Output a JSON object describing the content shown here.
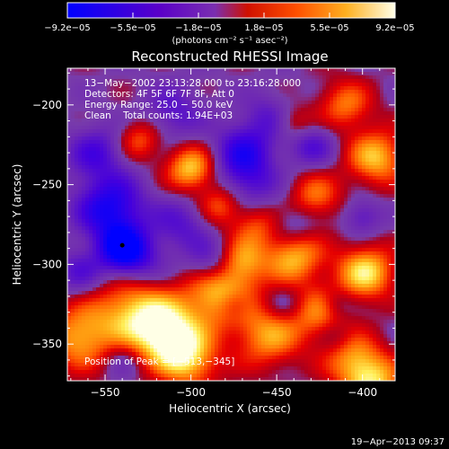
{
  "chart_data": {
    "type": "heatmap",
    "title": "Reconstructed RHESSI Image",
    "xlabel": "Heliocentric X (arcsec)",
    "ylabel": "Heliocentric Y (arcsec)",
    "xlim": [
      -572,
      -381
    ],
    "ylim": [
      -373,
      -177
    ],
    "x_ticks": [
      -550,
      -500,
      -450,
      -400
    ],
    "y_ticks": [
      -200,
      -250,
      -300,
      -350
    ],
    "x_tick_labels": [
      "−550",
      "−500",
      "−450",
      "−400"
    ],
    "y_tick_labels": [
      "−200",
      "−250",
      "−300",
      "−350"
    ],
    "colorbar": {
      "range": [
        -9.2e-05,
        9.2e-05
      ],
      "tick_labels": [
        "−9.2e−05",
        "−5.5e−05",
        "−1.8e−05",
        "1.8e−05",
        "5.5e−05",
        "9.2e−05"
      ],
      "unit_label": "(photons cm⁻² s⁻¹ asec⁻²)",
      "colors": [
        "#0000ff",
        "#5a00c8",
        "#7a2fb0",
        "#ff0000",
        "#ff8000",
        "#ffff60",
        "#ffffe8"
      ]
    },
    "annotations": {
      "time": "13−May−2002 23:13:28.000 to 23:16:28.000",
      "detectors": "Detectors: 4F 5F 6F 7F 8F, Att 0",
      "energy": "Energy Range: 25.0 − 50.0 keV",
      "clean": "Clean    Total counts: 1.94E+03",
      "peak": "Position of Peak = [−513,−345]"
    },
    "peak": {
      "x": -513,
      "y": -345
    },
    "blobs": [
      {
        "x": -565,
        "y": -346,
        "v": 0.7,
        "r": 14
      },
      {
        "x": -533,
        "y": -328,
        "v": 0.75,
        "r": 16
      },
      {
        "x": -513,
        "y": -345,
        "v": 1.0,
        "r": 14
      },
      {
        "x": -500,
        "y": -362,
        "v": 0.6,
        "r": 12
      },
      {
        "x": -483,
        "y": -318,
        "v": 0.85,
        "r": 14
      },
      {
        "x": -470,
        "y": -298,
        "v": 0.55,
        "r": 10
      },
      {
        "x": -455,
        "y": -345,
        "v": 0.65,
        "r": 14
      },
      {
        "x": -440,
        "y": -295,
        "v": 0.75,
        "r": 12
      },
      {
        "x": -425,
        "y": -330,
        "v": 0.55,
        "r": 12
      },
      {
        "x": -405,
        "y": -360,
        "v": 0.6,
        "r": 12
      },
      {
        "x": -398,
        "y": -305,
        "v": 0.85,
        "r": 12
      },
      {
        "x": -392,
        "y": -233,
        "v": 0.75,
        "r": 12
      },
      {
        "x": -410,
        "y": -200,
        "v": 0.55,
        "r": 11
      },
      {
        "x": -428,
        "y": -258,
        "v": 0.55,
        "r": 11
      },
      {
        "x": -462,
        "y": -275,
        "v": 0.45,
        "r": 10
      },
      {
        "x": -483,
        "y": -263,
        "v": 0.5,
        "r": 9
      },
      {
        "x": -500,
        "y": -240,
        "v": 0.8,
        "r": 10
      },
      {
        "x": -530,
        "y": -222,
        "v": 0.5,
        "r": 9
      },
      {
        "x": -440,
        "y": -212,
        "v": 0.4,
        "r": 8
      },
      {
        "x": -393,
        "y": -375,
        "v": 0.7,
        "r": 12
      },
      {
        "x": -555,
        "y": -230,
        "v": -0.5,
        "r": 12
      },
      {
        "x": -547,
        "y": -265,
        "v": -0.85,
        "r": 14
      },
      {
        "x": -540,
        "y": -290,
        "v": -0.95,
        "r": 10
      },
      {
        "x": -510,
        "y": -205,
        "v": -0.4,
        "r": 12
      },
      {
        "x": -505,
        "y": -275,
        "v": -0.4,
        "r": 12
      },
      {
        "x": -470,
        "y": -230,
        "v": -0.65,
        "r": 12
      },
      {
        "x": -455,
        "y": -208,
        "v": -0.35,
        "r": 11
      },
      {
        "x": -465,
        "y": -250,
        "v": -0.4,
        "r": 12
      },
      {
        "x": -430,
        "y": -225,
        "v": -0.45,
        "r": 10
      },
      {
        "x": -440,
        "y": -275,
        "v": -0.35,
        "r": 10
      },
      {
        "x": -488,
        "y": -300,
        "v": -0.5,
        "r": 10
      },
      {
        "x": -475,
        "y": -325,
        "v": -0.35,
        "r": 7
      },
      {
        "x": -530,
        "y": -300,
        "v": -0.4,
        "r": 12
      },
      {
        "x": -565,
        "y": -305,
        "v": -0.4,
        "r": 10
      },
      {
        "x": -445,
        "y": -325,
        "v": -0.25,
        "r": 8
      },
      {
        "x": -415,
        "y": -325,
        "v": -0.3,
        "r": 7
      },
      {
        "x": -400,
        "y": -270,
        "v": -0.4,
        "r": 8
      },
      {
        "x": -540,
        "y": -360,
        "v": -0.25,
        "r": 8
      },
      {
        "x": -415,
        "y": -345,
        "v": -0.2,
        "r": 7
      }
    ]
  },
  "footer": {
    "timestamp": "19−Apr−2013 09:37"
  }
}
